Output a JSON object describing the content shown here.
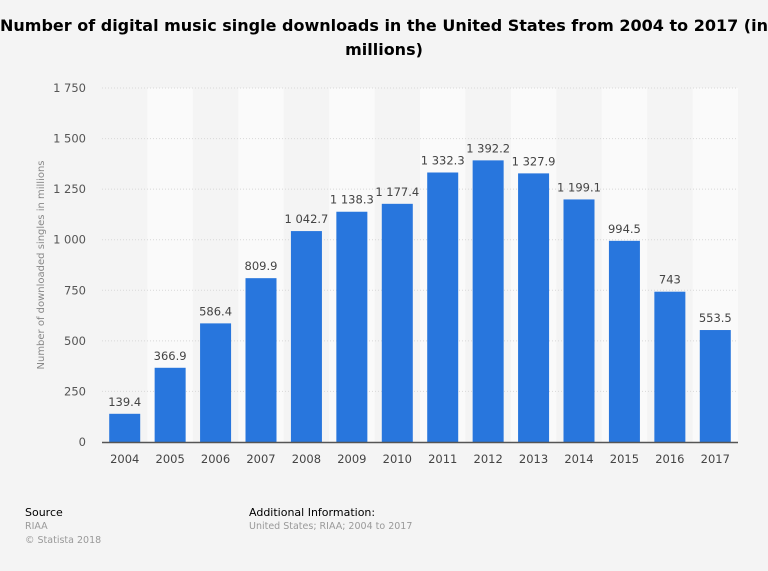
{
  "chart_data": {
    "type": "bar",
    "title": "Number of digital music single downloads in the United States from 2004 to 2017 (in millions)",
    "xlabel": "",
    "ylabel": "Number of downloaded singles in millions",
    "categories": [
      "2004",
      "2005",
      "2006",
      "2007",
      "2008",
      "2009",
      "2010",
      "2011",
      "2012",
      "2013",
      "2014",
      "2015",
      "2016",
      "2017"
    ],
    "values": [
      139.4,
      366.9,
      586.4,
      809.9,
      1042.7,
      1138.3,
      1177.4,
      1332.3,
      1392.2,
      1327.9,
      1199.1,
      994.5,
      743,
      553.5
    ],
    "value_labels": [
      "139.4",
      "366.9",
      "586.4",
      "809.9",
      "1 042.7",
      "1 138.3",
      "1 177.4",
      "1 332.3",
      "1 392.2",
      "1 327.9",
      "1 199.1",
      "994.5",
      "743",
      "553.5"
    ],
    "ylim": [
      0,
      1750
    ],
    "yticks": [
      0,
      250,
      500,
      750,
      1000,
      1250,
      1500,
      1750
    ],
    "ytick_labels": [
      "0",
      "250",
      "500",
      "750",
      "1 000",
      "1 250",
      "1 500",
      "1 750"
    ],
    "grid": true,
    "bar_color": "#2876dd"
  },
  "footer": {
    "source_heading": "Source",
    "source": "RIAA",
    "copyright": "© Statista 2018",
    "additional_heading": "Additional Information:",
    "additional": "United States; RIAA; 2004 to 2017"
  }
}
